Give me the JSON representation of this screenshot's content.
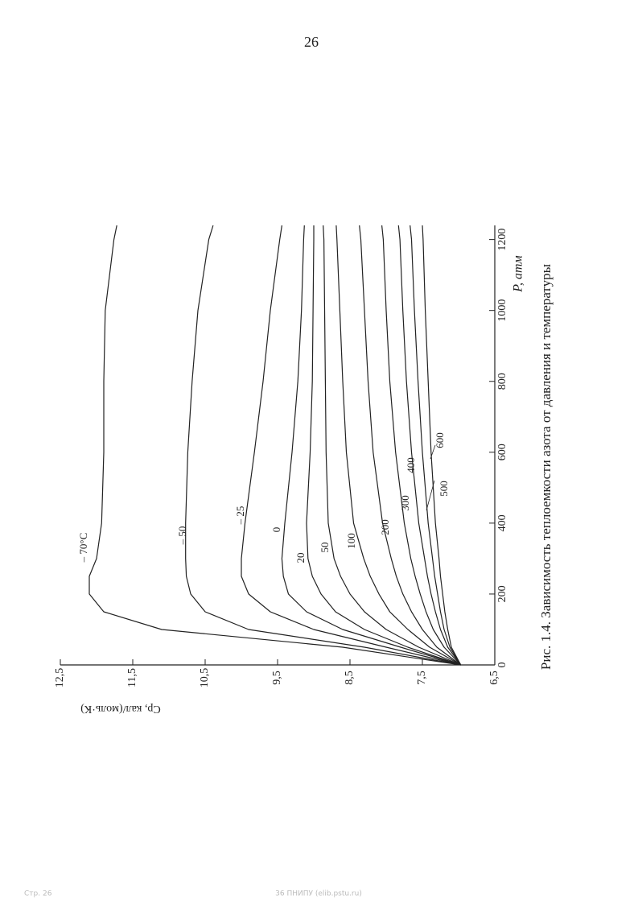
{
  "page_number": "26",
  "chart_data": {
    "type": "line",
    "x_label": "P, атм",
    "y_label": "Cp, кал/(моль·К)",
    "x": [
      0,
      50,
      100,
      150,
      200,
      250,
      300,
      400,
      600,
      800,
      1000,
      1200,
      1240
    ],
    "xlim": [
      0,
      1240
    ],
    "xticks": [
      0,
      200,
      400,
      600,
      800,
      1000,
      1200
    ],
    "ylim": [
      6.5,
      12.5
    ],
    "yticks": [
      {
        "value": 12.5,
        "label": "12,5"
      },
      {
        "value": 11.5,
        "label": "11,5"
      },
      {
        "value": 10.5,
        "label": "10,5"
      },
      {
        "value": 9.5,
        "label": "9,5"
      },
      {
        "value": 8.5,
        "label": "8,5"
      },
      {
        "value": 7.5,
        "label": "7,5"
      },
      {
        "value": 6.5,
        "label": "6,5"
      }
    ],
    "series": [
      {
        "name": "– 70°C",
        "color": "#222222",
        "values": [
          6.97,
          8.6,
          11.1,
          11.9,
          12.1,
          12.1,
          12.0,
          11.93,
          11.9,
          11.9,
          11.88,
          11.76,
          11.72
        ]
      },
      {
        "name": "– 50",
        "color": "#222222",
        "values": [
          6.97,
          8.3,
          9.9,
          10.5,
          10.7,
          10.76,
          10.77,
          10.77,
          10.74,
          10.68,
          10.6,
          10.45,
          10.39
        ]
      },
      {
        "name": "– 25",
        "color": "#222222",
        "values": [
          6.97,
          8.0,
          9.0,
          9.6,
          9.9,
          10.0,
          10.0,
          9.95,
          9.82,
          9.7,
          9.6,
          9.47,
          9.44
        ]
      },
      {
        "name": "0",
        "color": "#222222",
        "values": [
          6.97,
          7.8,
          8.6,
          9.1,
          9.35,
          9.42,
          9.44,
          9.4,
          9.3,
          9.22,
          9.17,
          9.14,
          9.13
        ]
      },
      {
        "name": "20",
        "color": "#222222",
        "values": [
          6.97,
          7.7,
          8.3,
          8.7,
          8.9,
          9.02,
          9.08,
          9.1,
          9.05,
          9.02,
          9.01,
          9.0,
          9.0
        ]
      },
      {
        "name": "50",
        "color": "#222222",
        "values": [
          6.97,
          7.55,
          8.0,
          8.3,
          8.5,
          8.63,
          8.72,
          8.8,
          8.83,
          8.84,
          8.85,
          8.86,
          8.87
        ]
      },
      {
        "name": "100",
        "color": "#222222",
        "values": [
          6.97,
          7.4,
          7.7,
          7.95,
          8.1,
          8.22,
          8.31,
          8.45,
          8.55,
          8.6,
          8.64,
          8.68,
          8.69
        ]
      },
      {
        "name": "200",
        "color": "#222222",
        "values": [
          6.97,
          7.3,
          7.5,
          7.65,
          7.77,
          7.86,
          7.93,
          8.05,
          8.18,
          8.25,
          8.3,
          8.35,
          8.37
        ]
      },
      {
        "name": "300",
        "color": "#222222",
        "values": [
          6.97,
          7.2,
          7.35,
          7.45,
          7.53,
          7.6,
          7.66,
          7.75,
          7.87,
          7.95,
          8.0,
          8.04,
          8.06
        ]
      },
      {
        "name": "400",
        "color": "#222222",
        "values": [
          6.97,
          7.15,
          7.25,
          7.32,
          7.38,
          7.43,
          7.47,
          7.55,
          7.65,
          7.72,
          7.77,
          7.81,
          7.83
        ]
      },
      {
        "name": "500",
        "color": "#222222",
        "values": [
          6.97,
          7.12,
          7.2,
          7.25,
          7.29,
          7.33,
          7.36,
          7.42,
          7.5,
          7.56,
          7.61,
          7.65,
          7.67
        ]
      },
      {
        "name": "600",
        "color": "#222222",
        "values": [
          6.97,
          7.1,
          7.15,
          7.19,
          7.22,
          7.25,
          7.27,
          7.32,
          7.38,
          7.42,
          7.46,
          7.49,
          7.5
        ]
      }
    ]
  },
  "caption": "Рис. 1.4. Зависимость теплоемкости азота от давления и температуры",
  "footer": {
    "left": "Стр. 26",
    "center": "36 ПНИПУ (elib.pstu.ru)"
  }
}
